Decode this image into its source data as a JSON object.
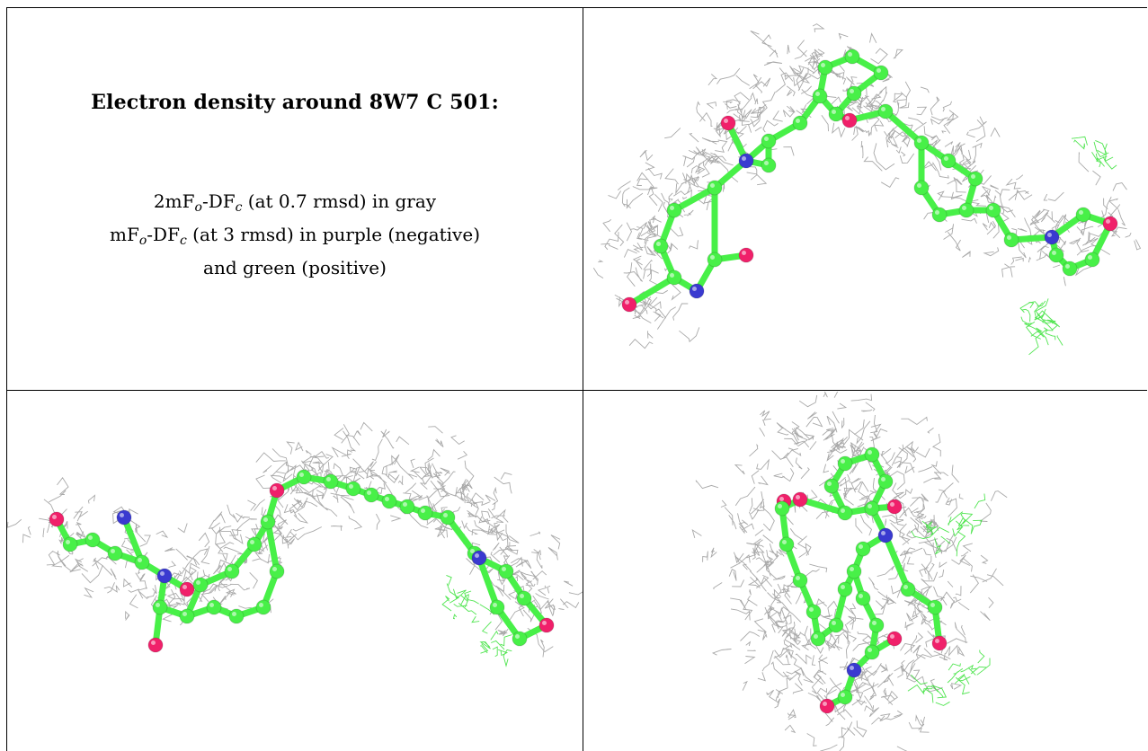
{
  "title": "Electron density around 8W7 C 501:",
  "legend": {
    "line1": {
      "prefix": "2mF",
      "sub_o": "o",
      "mid": "-DF",
      "sub_c": "c",
      "suffix": " (at 0.7 rmsd) in gray"
    },
    "line2": {
      "prefix": "mF",
      "sub_o": "o",
      "mid": "-DF",
      "sub_c": "c",
      "suffix": " (at 3 rmsd) in purple (negative)"
    },
    "line3": "and green (positive)"
  },
  "colors": {
    "mesh_2fofc": "#9a9a9a",
    "mesh_positive": "#33e033",
    "carbon": "#48f048",
    "nitrogen": "#3a3ad0",
    "oxygen": "#f0206a",
    "grid_line": "#000000"
  },
  "panels": [
    {
      "name": "view-1"
    },
    {
      "name": "view-2"
    },
    {
      "name": "view-3"
    }
  ]
}
